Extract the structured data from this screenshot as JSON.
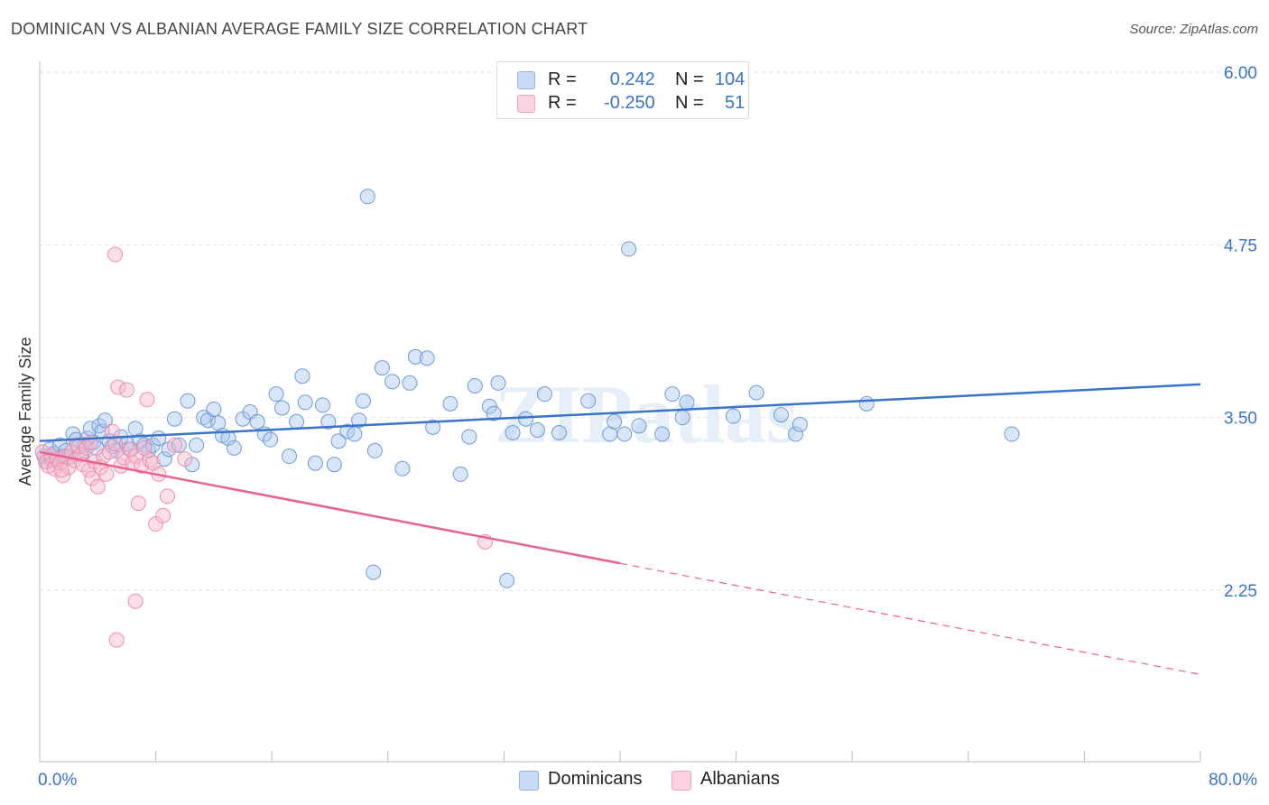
{
  "title": "DOMINICAN VS ALBANIAN AVERAGE FAMILY SIZE CORRELATION CHART",
  "source": "Source: ZipAtlas.com",
  "legend": {
    "rows": [
      {
        "r_label": "R =",
        "r_value": "0.242",
        "n_label": "N =",
        "n_value": "104",
        "color": "#aac7ee"
      },
      {
        "r_label": "R =",
        "r_value": "-0.250",
        "n_label": "N =",
        "n_value": "51",
        "color": "#f6b8ca"
      }
    ]
  },
  "bottom_legend": [
    "Dominicans",
    "Albanians"
  ],
  "chart_data": {
    "type": "scatter",
    "title": "DOMINICAN VS ALBANIAN AVERAGE FAMILY SIZE CORRELATION CHART",
    "ylabel": "Average Family Size",
    "xlabel": "",
    "xlim": [
      0,
      80
    ],
    "ylim": [
      1.0,
      6.3
    ],
    "x_tick_labels": [
      "0.0%",
      "80.0%"
    ],
    "y_ticks": [
      2.25,
      3.5,
      4.75,
      6.0
    ],
    "y_tick_labels": [
      "2.25",
      "3.50",
      "4.75",
      "6.00"
    ],
    "grid": "horizontal dashed",
    "legend_position": "top-center",
    "watermark": "ZIPatlas",
    "colors": {
      "blue": "#3a74c9",
      "blue_fill": "#aac7ee",
      "pink": "#e8628f",
      "pink_fill": "#f6b8ca"
    },
    "series": [
      {
        "name": "Dominicans",
        "color": "#3a74c9",
        "trend": {
          "x": [
            0,
            80
          ],
          "y": [
            3.33,
            3.74
          ],
          "dashed_from": null
        },
        "points": [
          [
            0.3,
            3.22
          ],
          [
            0.5,
            3.18
          ],
          [
            0.7,
            3.27
          ],
          [
            0.8,
            3.2
          ],
          [
            1.0,
            3.24
          ],
          [
            1.2,
            3.19
          ],
          [
            1.4,
            3.3
          ],
          [
            1.6,
            3.22
          ],
          [
            1.8,
            3.26
          ],
          [
            2.0,
            3.21
          ],
          [
            2.3,
            3.38
          ],
          [
            2.5,
            3.34
          ],
          [
            2.7,
            3.29
          ],
          [
            2.9,
            3.23
          ],
          [
            3.1,
            3.3
          ],
          [
            3.3,
            3.35
          ],
          [
            3.5,
            3.42
          ],
          [
            3.7,
            3.32
          ],
          [
            3.9,
            3.28
          ],
          [
            4.1,
            3.44
          ],
          [
            4.3,
            3.4
          ],
          [
            4.5,
            3.48
          ],
          [
            4.8,
            3.33
          ],
          [
            5.0,
            3.29
          ],
          [
            5.3,
            3.26
          ],
          [
            5.6,
            3.36
          ],
          [
            6.0,
            3.31
          ],
          [
            6.3,
            3.27
          ],
          [
            6.6,
            3.42
          ],
          [
            6.9,
            3.33
          ],
          [
            7.2,
            3.3
          ],
          [
            7.5,
            3.26
          ],
          [
            7.8,
            3.3
          ],
          [
            8.2,
            3.35
          ],
          [
            8.6,
            3.2
          ],
          [
            8.9,
            3.27
          ],
          [
            9.3,
            3.49
          ],
          [
            9.6,
            3.3
          ],
          [
            10.2,
            3.62
          ],
          [
            10.5,
            3.16
          ],
          [
            10.8,
            3.3
          ],
          [
            11.3,
            3.5
          ],
          [
            11.6,
            3.48
          ],
          [
            12.0,
            3.56
          ],
          [
            12.3,
            3.46
          ],
          [
            12.6,
            3.37
          ],
          [
            13.0,
            3.35
          ],
          [
            13.4,
            3.28
          ],
          [
            14.0,
            3.49
          ],
          [
            14.5,
            3.54
          ],
          [
            15.0,
            3.47
          ],
          [
            15.5,
            3.38
          ],
          [
            15.9,
            3.34
          ],
          [
            16.3,
            3.67
          ],
          [
            16.7,
            3.57
          ],
          [
            17.2,
            3.22
          ],
          [
            17.7,
            3.47
          ],
          [
            18.1,
            3.8
          ],
          [
            18.3,
            3.61
          ],
          [
            19.0,
            3.17
          ],
          [
            19.5,
            3.59
          ],
          [
            19.9,
            3.47
          ],
          [
            20.3,
            3.16
          ],
          [
            20.6,
            3.33
          ],
          [
            21.2,
            3.4
          ],
          [
            21.7,
            3.38
          ],
          [
            22.0,
            3.48
          ],
          [
            22.3,
            3.62
          ],
          [
            22.6,
            5.1
          ],
          [
            23.1,
            3.26
          ],
          [
            23.6,
            3.86
          ],
          [
            24.3,
            3.76
          ],
          [
            25.0,
            3.13
          ],
          [
            25.5,
            3.75
          ],
          [
            25.9,
            3.94
          ],
          [
            26.7,
            3.93
          ],
          [
            27.1,
            3.43
          ],
          [
            28.3,
            3.6
          ],
          [
            29.0,
            3.09
          ],
          [
            29.6,
            3.36
          ],
          [
            30.0,
            3.73
          ],
          [
            31.0,
            3.58
          ],
          [
            31.3,
            3.53
          ],
          [
            31.6,
            3.75
          ],
          [
            32.6,
            3.39
          ],
          [
            33.5,
            3.49
          ],
          [
            34.3,
            3.41
          ],
          [
            34.8,
            3.67
          ],
          [
            35.8,
            3.39
          ],
          [
            37.8,
            3.62
          ],
          [
            39.3,
            3.38
          ],
          [
            39.6,
            3.47
          ],
          [
            40.3,
            3.38
          ],
          [
            40.6,
            4.72
          ],
          [
            41.3,
            3.44
          ],
          [
            42.9,
            3.38
          ],
          [
            43.6,
            3.67
          ],
          [
            44.3,
            3.5
          ],
          [
            44.6,
            3.61
          ],
          [
            47.8,
            3.51
          ],
          [
            49.4,
            3.68
          ],
          [
            51.1,
            3.52
          ],
          [
            52.1,
            3.38
          ],
          [
            52.4,
            3.45
          ],
          [
            57.0,
            3.6
          ],
          [
            67.0,
            3.38
          ],
          [
            23.0,
            2.38
          ],
          [
            32.2,
            2.32
          ]
        ]
      },
      {
        "name": "Albanians",
        "color": "#e8628f",
        "trend": {
          "x": [
            0,
            80
          ],
          "y": [
            3.25,
            1.64
          ],
          "solid_until_x": 40.0
        },
        "points": [
          [
            0.2,
            3.25
          ],
          [
            0.4,
            3.18
          ],
          [
            0.6,
            3.15
          ],
          [
            0.8,
            3.22
          ],
          [
            1.0,
            3.13
          ],
          [
            1.2,
            3.2
          ],
          [
            1.4,
            3.17
          ],
          [
            1.6,
            3.08
          ],
          [
            1.8,
            3.22
          ],
          [
            2.0,
            3.14
          ],
          [
            2.2,
            3.25
          ],
          [
            2.4,
            3.19
          ],
          [
            2.6,
            3.3
          ],
          [
            2.8,
            3.23
          ],
          [
            3.0,
            3.16
          ],
          [
            3.2,
            3.28
          ],
          [
            3.4,
            3.12
          ],
          [
            3.6,
            3.06
          ],
          [
            3.8,
            3.18
          ],
          [
            4.0,
            3.0
          ],
          [
            4.2,
            3.14
          ],
          [
            4.4,
            3.22
          ],
          [
            4.6,
            3.09
          ],
          [
            4.8,
            3.25
          ],
          [
            5.0,
            3.4
          ],
          [
            5.2,
            3.31
          ],
          [
            5.4,
            3.72
          ],
          [
            5.6,
            3.15
          ],
          [
            5.8,
            3.21
          ],
          [
            6.0,
            3.7
          ],
          [
            6.2,
            3.27
          ],
          [
            6.4,
            3.17
          ],
          [
            6.6,
            3.22
          ],
          [
            6.8,
            2.88
          ],
          [
            7.0,
            3.15
          ],
          [
            7.2,
            3.28
          ],
          [
            7.4,
            3.63
          ],
          [
            7.6,
            3.19
          ],
          [
            7.8,
            3.17
          ],
          [
            8.0,
            2.73
          ],
          [
            8.2,
            3.09
          ],
          [
            8.5,
            2.79
          ],
          [
            8.8,
            2.93
          ],
          [
            9.3,
            3.3
          ],
          [
            10.0,
            3.2
          ],
          [
            5.2,
            4.68
          ],
          [
            6.6,
            2.17
          ],
          [
            5.3,
            1.89
          ],
          [
            30.7,
            2.6
          ],
          [
            3.5,
            3.32
          ],
          [
            1.5,
            3.12
          ]
        ]
      }
    ]
  }
}
